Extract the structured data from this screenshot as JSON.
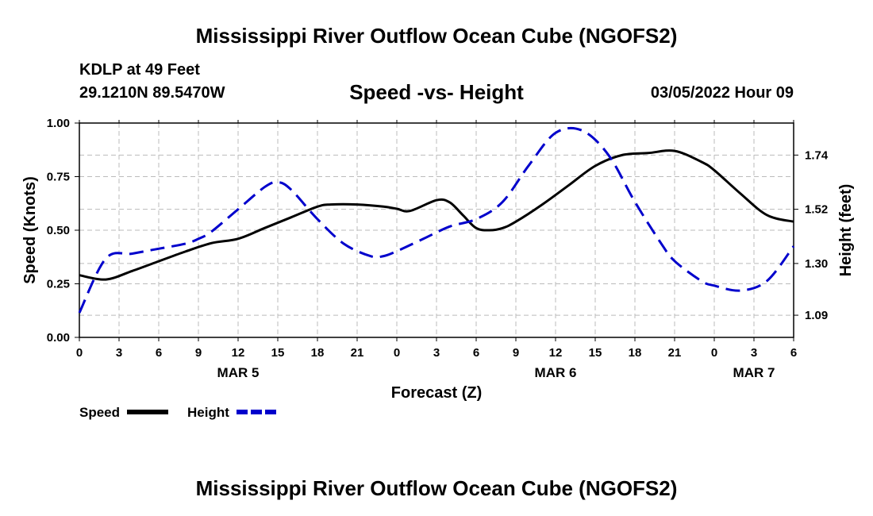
{
  "header": {
    "title": "Mississippi River Outflow Ocean Cube (NGOFS2)",
    "station": "KDLP at 49 Feet",
    "coordinates": "29.1210N  89.5470W",
    "subtitle": "Speed -vs- Height",
    "datetime": "03/05/2022 Hour 09"
  },
  "footer": {
    "title": "Mississippi River Outflow Ocean Cube (NGOFS2)"
  },
  "chart_data": {
    "type": "line",
    "title": "Speed -vs- Height",
    "xlabel": "Forecast (Z)",
    "ylabel": "Speed (Knots)",
    "y2label": "Height (feet)",
    "x_range_hours": [
      0,
      54
    ],
    "x_tick_hours": [
      0,
      3,
      6,
      9,
      12,
      15,
      18,
      21,
      24,
      27,
      30,
      33,
      36,
      39,
      42,
      45,
      48,
      51,
      54
    ],
    "x_tick_labels": [
      "0",
      "3",
      "6",
      "9",
      "12",
      "15",
      "18",
      "21",
      "0",
      "3",
      "6",
      "9",
      "12",
      "15",
      "18",
      "21",
      "0",
      "3",
      "6"
    ],
    "day_labels": [
      {
        "label": "MAR 5",
        "hour": 12
      },
      {
        "label": "MAR 6",
        "hour": 36
      },
      {
        "label": "MAR 7",
        "hour": 51
      }
    ],
    "ylim": [
      0,
      1
    ],
    "y_ticks": [
      0,
      0.25,
      0.5,
      0.75,
      1
    ],
    "y_tick_labels": [
      "0.00",
      "0.25",
      "0.50",
      "0.75",
      "1.00"
    ],
    "y2lim": [
      1.0,
      1.87
    ],
    "y2_ticks": [
      1.09,
      1.3,
      1.52,
      1.74
    ],
    "y2_tick_labels": [
      "1.09",
      "1.30",
      "1.52",
      "1.74"
    ],
    "grid": true,
    "series": [
      {
        "name": "Speed",
        "axis": "left",
        "color": "#000000",
        "dash": "solid",
        "x": [
          0,
          2,
          4,
          6,
          8,
          10,
          12,
          14,
          16,
          18,
          19,
          21,
          23,
          24,
          25,
          27,
          28,
          29,
          30,
          31,
          32,
          33,
          35,
          37,
          39,
          41,
          43,
          45,
          47,
          48,
          50,
          52,
          54
        ],
        "y": [
          0.29,
          0.27,
          0.31,
          0.355,
          0.4,
          0.44,
          0.46,
          0.51,
          0.56,
          0.61,
          0.62,
          0.62,
          0.61,
          0.6,
          0.59,
          0.64,
          0.63,
          0.57,
          0.51,
          0.5,
          0.51,
          0.54,
          0.62,
          0.71,
          0.8,
          0.85,
          0.86,
          0.87,
          0.82,
          0.78,
          0.67,
          0.57,
          0.54
        ]
      },
      {
        "name": "Height",
        "axis": "right",
        "color": "#0000cc",
        "dash": "dashed",
        "x": [
          0,
          2,
          4,
          6,
          8,
          9,
          10,
          12,
          14,
          15,
          16,
          18,
          20,
          22,
          23,
          24,
          26,
          28,
          30,
          32,
          34,
          36,
          38,
          40,
          42,
          44,
          45,
          47,
          48,
          50,
          52,
          54
        ],
        "y": [
          1.1,
          1.32,
          1.34,
          1.36,
          1.38,
          1.4,
          1.43,
          1.52,
          1.61,
          1.63,
          1.6,
          1.48,
          1.38,
          1.33,
          1.33,
          1.35,
          1.4,
          1.45,
          1.48,
          1.55,
          1.7,
          1.83,
          1.84,
          1.74,
          1.55,
          1.38,
          1.31,
          1.23,
          1.21,
          1.19,
          1.23,
          1.37
        ]
      }
    ]
  }
}
